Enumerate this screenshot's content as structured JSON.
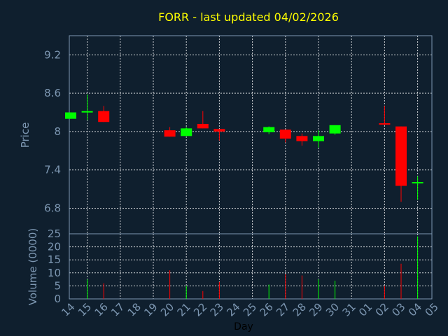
{
  "chart_data": [
    {
      "type": "candlestick",
      "title": "FORR - last updated 04/02/2026",
      "ylabel": "Price",
      "ylim": [
        6.4,
        9.5
      ],
      "yticks": [
        "6.8",
        "7.4",
        "8",
        "8.6",
        "9.2"
      ],
      "grid": true,
      "colors": {
        "up": "#00ff00",
        "down": "#ff0000",
        "grid": "#ffffff",
        "axis": "#7d97b2",
        "background": "#0f1f2e",
        "title": "#ffff00"
      },
      "candles": [
        {
          "day": "14",
          "open": 8.2,
          "close": 8.3,
          "high": 8.3,
          "low": 8.2
        },
        {
          "day": "15",
          "open": 8.31,
          "close": 8.32,
          "high": 8.58,
          "low": 8.18
        },
        {
          "day": "16",
          "open": 8.32,
          "close": 8.15,
          "high": 8.4,
          "low": 8.15
        },
        {
          "day": "20",
          "open": 8.02,
          "close": 7.92,
          "high": 8.07,
          "low": 7.92
        },
        {
          "day": "21",
          "open": 7.93,
          "close": 8.05,
          "high": 8.07,
          "low": 7.93
        },
        {
          "day": "22",
          "open": 8.12,
          "close": 8.05,
          "high": 8.32,
          "low": 8.05
        },
        {
          "day": "23",
          "open": 8.04,
          "close": 8.0,
          "high": 8.04,
          "low": 7.86
        },
        {
          "day": "26",
          "open": 7.99,
          "close": 8.07,
          "high": 8.08,
          "low": 7.96
        },
        {
          "day": "27",
          "open": 8.03,
          "close": 7.89,
          "high": 8.03,
          "low": 7.83
        },
        {
          "day": "28",
          "open": 7.93,
          "close": 7.85,
          "high": 7.97,
          "low": 7.78
        },
        {
          "day": "29",
          "open": 7.85,
          "close": 7.93,
          "high": 8.02,
          "low": 7.75
        },
        {
          "day": "30",
          "open": 7.97,
          "close": 8.1,
          "high": 8.1,
          "low": 7.95
        },
        {
          "day": "02",
          "open": 8.13,
          "close": 8.12,
          "high": 8.4,
          "low": 8.1
        },
        {
          "day": "03",
          "open": 8.08,
          "close": 7.15,
          "high": 8.08,
          "low": 6.9
        },
        {
          "day": "04",
          "open": 7.2,
          "close": 7.21,
          "high": 7.3,
          "low": 6.93
        }
      ]
    },
    {
      "type": "bar",
      "ylabel": "Volume (0000)",
      "ylim": [
        0,
        25
      ],
      "yticks": [
        "0",
        "5",
        "10",
        "15",
        "20",
        "25"
      ],
      "xlabel": "Day",
      "xticks": [
        "14",
        "15",
        "16",
        "17",
        "18",
        "19",
        "20",
        "21",
        "22",
        "23",
        "24",
        "25",
        "26",
        "27",
        "28",
        "29",
        "30",
        "31",
        "01",
        "02",
        "03",
        "04",
        "05"
      ],
      "bars": [
        {
          "day": "15",
          "value": 7.5,
          "direction": "up"
        },
        {
          "day": "16",
          "value": 6,
          "direction": "down"
        },
        {
          "day": "20",
          "value": 11,
          "direction": "down"
        },
        {
          "day": "21",
          "value": 5,
          "direction": "up"
        },
        {
          "day": "22",
          "value": 3,
          "direction": "down"
        },
        {
          "day": "23",
          "value": 6.5,
          "direction": "down"
        },
        {
          "day": "26",
          "value": 5.5,
          "direction": "up"
        },
        {
          "day": "27",
          "value": 9.5,
          "direction": "down"
        },
        {
          "day": "28",
          "value": 9,
          "direction": "down"
        },
        {
          "day": "29",
          "value": 7.5,
          "direction": "up"
        },
        {
          "day": "30",
          "value": 7,
          "direction": "up"
        },
        {
          "day": "02",
          "value": 5,
          "direction": "down"
        },
        {
          "day": "03",
          "value": 13.5,
          "direction": "down"
        },
        {
          "day": "04",
          "value": 24,
          "direction": "up"
        }
      ]
    }
  ]
}
